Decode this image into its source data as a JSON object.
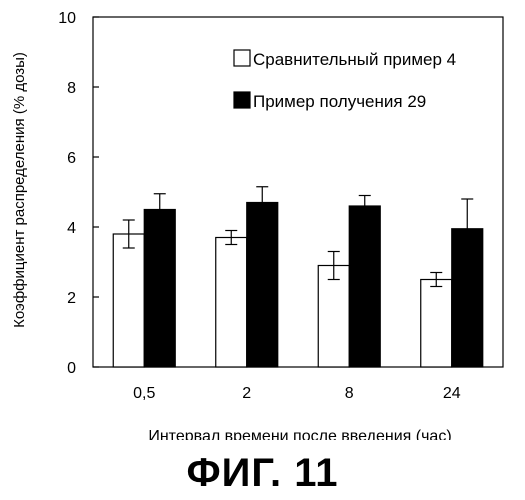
{
  "figure_caption": "ФИГ. 11",
  "chart_data": {
    "type": "bar",
    "title": "",
    "xlabel": "Интервал времени после введения (час)",
    "ylabel": "Коэффициент распределения (% дозы)",
    "categories": [
      "0,5",
      "2",
      "8",
      "24"
    ],
    "ylim": [
      0,
      10
    ],
    "yticks": [
      0,
      2,
      4,
      6,
      8,
      10
    ],
    "grid": false,
    "legend_position": "top-right",
    "series": [
      {
        "name": "Сравнительный пример 4",
        "fill": "#ffffff",
        "stroke": "#000000",
        "values": [
          3.8,
          3.7,
          2.9,
          2.5
        ],
        "errors": [
          0.4,
          0.2,
          0.4,
          0.2
        ]
      },
      {
        "name": "Пример получения 29",
        "fill": "#000000",
        "stroke": "#000000",
        "values": [
          4.5,
          4.7,
          4.6,
          3.95
        ],
        "errors": [
          0.45,
          0.45,
          0.3,
          0.85
        ]
      }
    ]
  }
}
